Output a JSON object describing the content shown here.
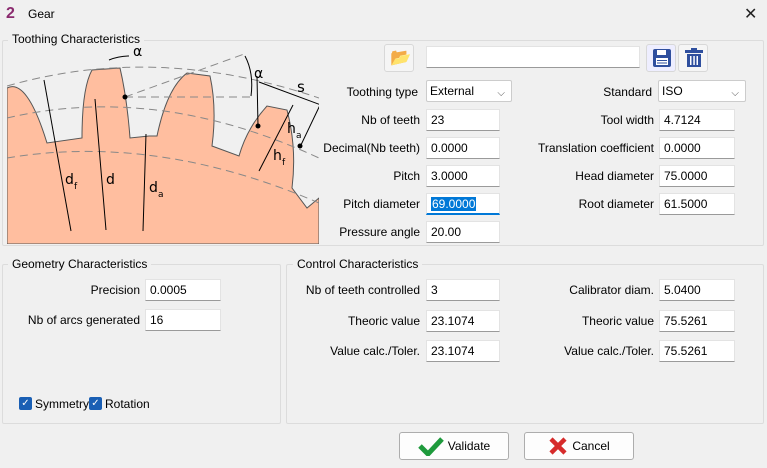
{
  "window": {
    "title": "Gear",
    "logo": "2"
  },
  "toothing": {
    "group_label": "Toothing Characteristics",
    "file_path": "",
    "diagram_labels": {
      "alpha": "α",
      "s": "s",
      "ha": "h",
      "ha_sub": "a",
      "hf": "h",
      "hf_sub": "f",
      "df": "d",
      "df_sub": "f",
      "d": "d",
      "da": "d",
      "da_sub": "a"
    },
    "toothing_type": {
      "label": "Toothing type",
      "value": "External"
    },
    "nb_teeth": {
      "label": "Nb of teeth",
      "value": "23"
    },
    "decimal": {
      "label": "Decimal(Nb teeth)",
      "value": "0.0000"
    },
    "pitch": {
      "label": "Pitch",
      "value": "3.0000"
    },
    "pitch_diameter": {
      "label": "Pitch diameter",
      "value": "69.0000"
    },
    "pressure_angle": {
      "label": "Pressure angle",
      "value": "20.00"
    },
    "standard": {
      "label": "Standard",
      "value": "ISO"
    },
    "tool_width": {
      "label": "Tool width",
      "value": "4.7124"
    },
    "translation": {
      "label": "Translation coefficient",
      "value": "0.0000"
    },
    "head_diameter": {
      "label": "Head diameter",
      "value": "75.0000"
    },
    "root_diameter": {
      "label": "Root diameter",
      "value": "61.5000"
    }
  },
  "geometry": {
    "group_label": "Geometry Characteristics",
    "precision": {
      "label": "Precision",
      "value": "0.0005"
    },
    "nb_arcs": {
      "label": "Nb of arcs generated",
      "value": "16"
    },
    "symmetry": {
      "label": "Symmetry",
      "checked": true
    },
    "rotation": {
      "label": "Rotation",
      "checked": true
    }
  },
  "control": {
    "group_label": "Control Characteristics",
    "nb_teeth_controlled": {
      "label": "Nb of teeth controlled",
      "value": "3"
    },
    "theoric_left": {
      "label": "Theoric value",
      "value": "23.1074"
    },
    "calc_left": {
      "label": "Value calc./Toler.",
      "value": "23.1074"
    },
    "calibrator": {
      "label": "Calibrator diam.",
      "value": "5.0400"
    },
    "theoric_right": {
      "label": "Theoric value",
      "value": "75.5261"
    },
    "calc_right": {
      "label": "Value calc./Toler.",
      "value": "75.5261"
    }
  },
  "buttons": {
    "validate": "Validate",
    "cancel": "Cancel"
  },
  "colors": {
    "gear_fill": "#ffbe9f",
    "accent": "#0078d7",
    "validate": "#1e9a3c",
    "cancel": "#d62b2b",
    "icon_blue": "#2f4f9e"
  }
}
